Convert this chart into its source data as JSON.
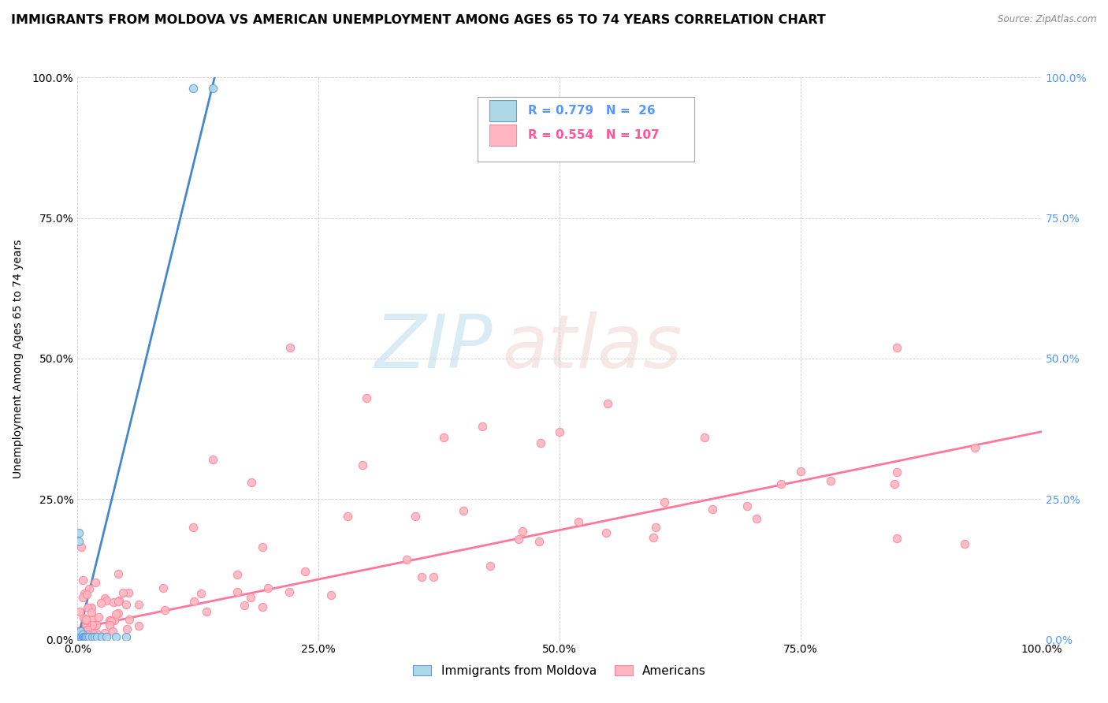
{
  "title": "IMMIGRANTS FROM MOLDOVA VS AMERICAN UNEMPLOYMENT AMONG AGES 65 TO 74 YEARS CORRELATION CHART",
  "source": "Source: ZipAtlas.com",
  "ylabel": "Unemployment Among Ages 65 to 74 years",
  "xlim": [
    0,
    1.0
  ],
  "ylim": [
    0,
    1.0
  ],
  "watermark_zip": "ZIP",
  "watermark_atlas": "atlas",
  "blue_fill": "#ADD8E6",
  "blue_edge": "#6699DD",
  "pink_fill": "#FFB6C1",
  "pink_edge": "#FF8899",
  "blue_trend_color": "#4488CC",
  "pink_trend_color": "#FF7799",
  "right_tick_color": "#5599FF",
  "grid_color": "#CCCCCC",
  "background_color": "#FFFFFF",
  "title_fontsize": 11.5,
  "axis_label_fontsize": 10,
  "tick_fontsize": 10,
  "legend_r1": "R = 0.779",
  "legend_n1": "N =  26",
  "legend_r2": "R = 0.554",
  "legend_n2": "N = 107",
  "yticks": [
    0.0,
    0.25,
    0.5,
    0.75,
    1.0
  ],
  "ytick_labels": [
    "0.0%",
    "25.0%",
    "50.0%",
    "75.0%",
    "100.0%"
  ],
  "xticks": [
    0.0,
    0.25,
    0.5,
    0.75,
    1.0
  ],
  "xtick_labels": [
    "0.0%",
    "25.0%",
    "50.0%",
    "75.0%",
    "100.0%"
  ],
  "blue_scatter_x": [
    0.001,
    0.001,
    0.002,
    0.002,
    0.003,
    0.003,
    0.003,
    0.004,
    0.005,
    0.005,
    0.006,
    0.007,
    0.008,
    0.009,
    0.01,
    0.012,
    0.015,
    0.018,
    0.02,
    0.025,
    0.03,
    0.04,
    0.05,
    0.001,
    0.12,
    0.14
  ],
  "blue_scatter_y": [
    0.005,
    0.19,
    0.005,
    0.01,
    0.005,
    0.01,
    0.015,
    0.005,
    0.005,
    0.01,
    0.005,
    0.005,
    0.005,
    0.005,
    0.005,
    0.005,
    0.005,
    0.005,
    0.005,
    0.005,
    0.005,
    0.005,
    0.005,
    0.175,
    0.98,
    0.98
  ],
  "blue_trend_x": [
    0.0,
    0.145
  ],
  "blue_trend_y": [
    0.0,
    1.02
  ],
  "pink_trend_x": [
    0.0,
    1.0
  ],
  "pink_trend_y": [
    0.02,
    0.37
  ]
}
